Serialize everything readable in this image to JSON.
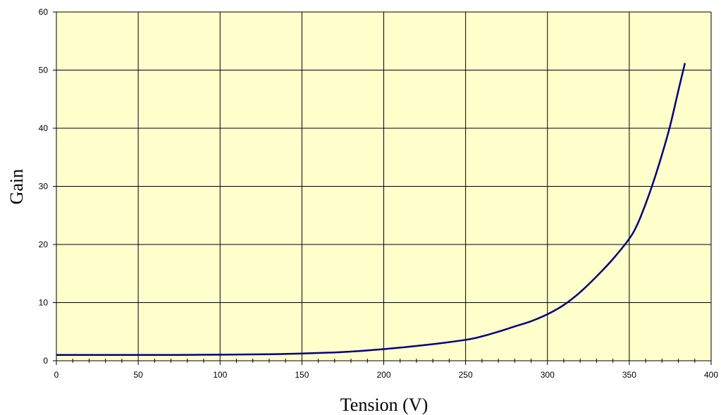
{
  "chart_data": {
    "type": "line",
    "xlabel": "Tension (V)",
    "ylabel": "Gain",
    "xlim": [
      0,
      400
    ],
    "ylim": [
      0,
      60
    ],
    "x_ticks": [
      0,
      50,
      100,
      150,
      200,
      250,
      300,
      350,
      400
    ],
    "y_ticks": [
      0,
      10,
      20,
      30,
      40,
      50,
      60
    ],
    "grid": true,
    "colors": {
      "plot_background": "#ffffcc",
      "line": "#000080",
      "grid": "#000000"
    },
    "series": [
      {
        "x": [
          0,
          25,
          50,
          75,
          100,
          125,
          150,
          175,
          200,
          225,
          250,
          260,
          270,
          280,
          290,
          300,
          310,
          320,
          330,
          340,
          350,
          355,
          360,
          365,
          370,
          375,
          380,
          384
        ],
        "values": [
          1.0,
          1.0,
          1.0,
          1.0,
          1.05,
          1.1,
          1.25,
          1.5,
          2.0,
          2.7,
          3.6,
          4.2,
          5.0,
          5.9,
          6.8,
          8.0,
          9.6,
          11.8,
          14.5,
          17.5,
          21.0,
          23.5,
          27.0,
          31.0,
          35.5,
          40.5,
          46.5,
          51.2
        ]
      }
    ]
  }
}
